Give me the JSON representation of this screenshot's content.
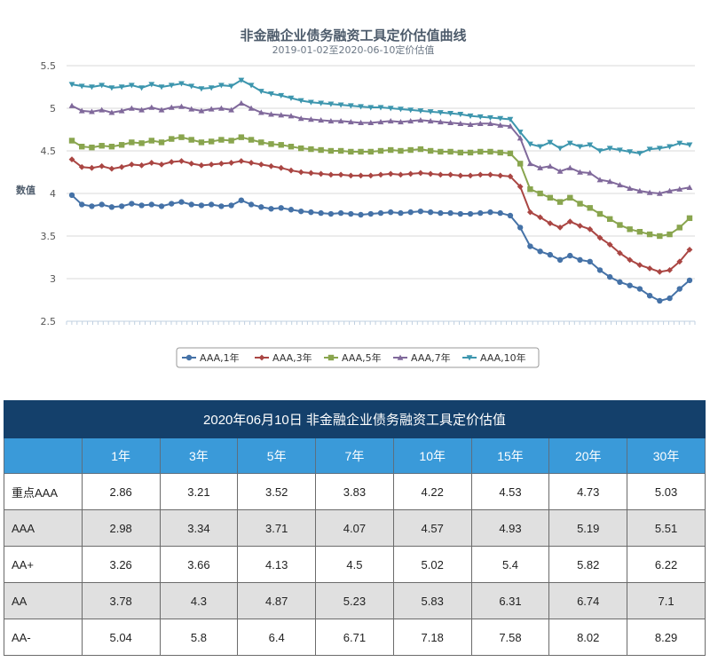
{
  "chart_data": {
    "type": "line",
    "title": "非金融企业债务融资工具定价估值曲线",
    "subtitle": "2019-01-02至2020-06-10定价估值",
    "ylabel": "数值",
    "xlabel": "",
    "ylim": [
      2.5,
      5.5
    ],
    "yticks": [
      "5.5",
      "5",
      "4.5",
      "4",
      "3.5",
      "3",
      "2.5"
    ],
    "grid": true,
    "legend_position": "bottom",
    "x_start": "2019-01-02",
    "x_end": "2020-06-10",
    "series": [
      {
        "name": "AAA,1年",
        "color": "#4572a7",
        "marker": "circle",
        "values": [
          3.98,
          3.87,
          3.85,
          3.87,
          3.84,
          3.85,
          3.88,
          3.86,
          3.87,
          3.85,
          3.88,
          3.9,
          3.87,
          3.86,
          3.87,
          3.85,
          3.86,
          3.92,
          3.87,
          3.84,
          3.82,
          3.83,
          3.81,
          3.79,
          3.78,
          3.77,
          3.76,
          3.77,
          3.76,
          3.75,
          3.76,
          3.77,
          3.78,
          3.77,
          3.78,
          3.79,
          3.78,
          3.77,
          3.77,
          3.76,
          3.76,
          3.77,
          3.78,
          3.77,
          3.74,
          3.6,
          3.38,
          3.32,
          3.28,
          3.22,
          3.27,
          3.22,
          3.2,
          3.1,
          3.02,
          2.96,
          2.92,
          2.88,
          2.8,
          2.74,
          2.77,
          2.88,
          2.98
        ]
      },
      {
        "name": "AAA,3年",
        "color": "#aa4643",
        "marker": "diamond",
        "values": [
          4.4,
          4.31,
          4.3,
          4.32,
          4.29,
          4.31,
          4.34,
          4.33,
          4.36,
          4.34,
          4.37,
          4.38,
          4.35,
          4.33,
          4.34,
          4.35,
          4.36,
          4.38,
          4.36,
          4.34,
          4.32,
          4.3,
          4.27,
          4.25,
          4.24,
          4.23,
          4.22,
          4.22,
          4.21,
          4.21,
          4.21,
          4.22,
          4.23,
          4.22,
          4.23,
          4.24,
          4.23,
          4.22,
          4.22,
          4.21,
          4.21,
          4.22,
          4.22,
          4.21,
          4.2,
          4.08,
          3.78,
          3.72,
          3.65,
          3.6,
          3.67,
          3.62,
          3.58,
          3.48,
          3.4,
          3.3,
          3.22,
          3.16,
          3.12,
          3.08,
          3.1,
          3.2,
          3.34
        ]
      },
      {
        "name": "AAA,5年",
        "color": "#89a54e",
        "marker": "square",
        "values": [
          4.62,
          4.55,
          4.54,
          4.56,
          4.55,
          4.57,
          4.6,
          4.59,
          4.62,
          4.6,
          4.64,
          4.66,
          4.63,
          4.6,
          4.61,
          4.63,
          4.62,
          4.66,
          4.63,
          4.6,
          4.58,
          4.57,
          4.55,
          4.53,
          4.52,
          4.51,
          4.5,
          4.5,
          4.49,
          4.49,
          4.49,
          4.5,
          4.51,
          4.5,
          4.51,
          4.52,
          4.5,
          4.49,
          4.49,
          4.48,
          4.48,
          4.49,
          4.49,
          4.48,
          4.47,
          4.35,
          4.05,
          4.0,
          3.95,
          3.9,
          3.95,
          3.88,
          3.83,
          3.76,
          3.7,
          3.63,
          3.58,
          3.55,
          3.52,
          3.5,
          3.52,
          3.6,
          3.71
        ]
      },
      {
        "name": "AAA,7年",
        "color": "#80699b",
        "marker": "triangle",
        "values": [
          5.03,
          4.97,
          4.96,
          4.98,
          4.95,
          4.97,
          5.0,
          4.98,
          5.01,
          4.98,
          5.01,
          5.02,
          4.99,
          4.97,
          4.99,
          5.0,
          4.98,
          5.06,
          5.0,
          4.95,
          4.93,
          4.92,
          4.91,
          4.88,
          4.87,
          4.86,
          4.85,
          4.85,
          4.84,
          4.83,
          4.83,
          4.84,
          4.85,
          4.84,
          4.85,
          4.86,
          4.85,
          4.84,
          4.83,
          4.82,
          4.81,
          4.82,
          4.82,
          4.8,
          4.79,
          4.65,
          4.35,
          4.3,
          4.32,
          4.26,
          4.3,
          4.25,
          4.24,
          4.16,
          4.14,
          4.1,
          4.06,
          4.03,
          4.01,
          4.0,
          4.03,
          4.05,
          4.07
        ]
      },
      {
        "name": "AAA,10年",
        "color": "#3d96ae",
        "marker": "triangle-down",
        "values": [
          5.28,
          5.26,
          5.25,
          5.27,
          5.24,
          5.25,
          5.27,
          5.24,
          5.28,
          5.25,
          5.27,
          5.29,
          5.26,
          5.23,
          5.24,
          5.27,
          5.26,
          5.33,
          5.27,
          5.2,
          5.17,
          5.15,
          5.12,
          5.09,
          5.07,
          5.06,
          5.05,
          5.04,
          5.03,
          5.02,
          5.01,
          5.01,
          5.0,
          4.99,
          4.98,
          4.97,
          4.96,
          4.95,
          4.94,
          4.93,
          4.91,
          4.9,
          4.89,
          4.88,
          4.87,
          4.72,
          4.58,
          4.55,
          4.6,
          4.53,
          4.59,
          4.55,
          4.57,
          4.5,
          4.53,
          4.51,
          4.49,
          4.47,
          4.52,
          4.53,
          4.55,
          4.59,
          4.57
        ]
      }
    ]
  },
  "table": {
    "title": "2020年06月10日  非金融企业债务融资工具定价估值",
    "columns": [
      "",
      "1年",
      "3年",
      "5年",
      "7年",
      "10年",
      "15年",
      "20年",
      "30年"
    ],
    "rows": [
      [
        "重点AAA",
        "2.86",
        "3.21",
        "3.52",
        "3.83",
        "4.22",
        "4.53",
        "4.73",
        "5.03"
      ],
      [
        "AAA",
        "2.98",
        "3.34",
        "3.71",
        "4.07",
        "4.57",
        "4.93",
        "5.19",
        "5.51"
      ],
      [
        "AA+",
        "3.26",
        "3.66",
        "4.13",
        "4.5",
        "5.02",
        "5.4",
        "5.82",
        "6.22"
      ],
      [
        "AA",
        "3.78",
        "4.3",
        "4.87",
        "5.23",
        "5.83",
        "6.31",
        "6.74",
        "7.1"
      ],
      [
        "AA-",
        "5.04",
        "5.8",
        "6.4",
        "6.71",
        "7.18",
        "7.58",
        "8.02",
        "8.29"
      ]
    ]
  }
}
